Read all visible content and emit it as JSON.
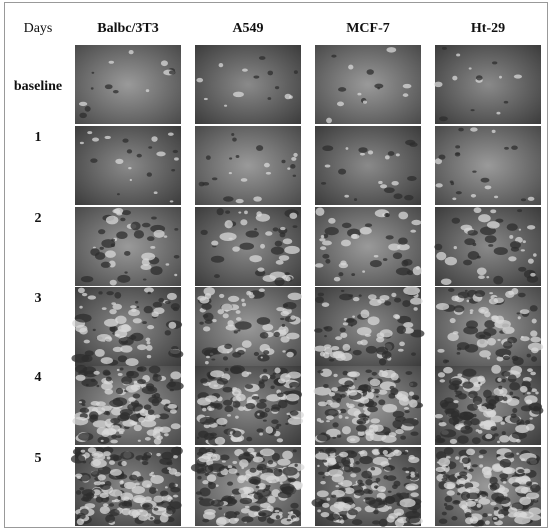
{
  "corner": "Days",
  "columns": [
    "Balbc/3T3",
    "A549",
    "MCF-7",
    "Ht-29"
  ],
  "rows": [
    "baseline",
    "1",
    "2",
    "3",
    "4",
    "5"
  ]
}
